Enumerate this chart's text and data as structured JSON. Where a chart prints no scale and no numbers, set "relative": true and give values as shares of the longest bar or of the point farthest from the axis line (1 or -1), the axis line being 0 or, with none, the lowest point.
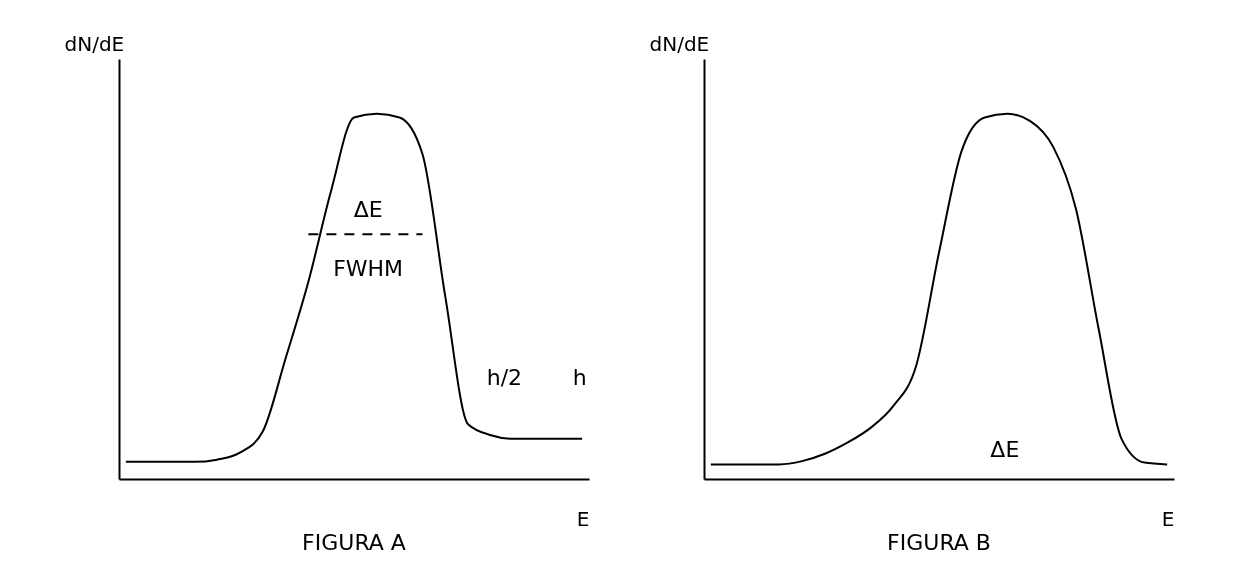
{
  "chart_data": [
    {
      "type": "line",
      "title": "FIGURA A",
      "xlabel": "E",
      "ylabel": "dN/dE",
      "relative": true,
      "grid": false,
      "categories": [
        null,
        null,
        null,
        null,
        null,
        null,
        null,
        null,
        null,
        null,
        null,
        null,
        null,
        null,
        null,
        null,
        null,
        null,
        null,
        null,
        null
      ],
      "series": [
        {
          "color": "#000000",
          "values": [
            0.047,
            0.047,
            0.047,
            0.047,
            0.053,
            0.072,
            0.13,
            0.33,
            0.54,
            0.79,
            0.99,
            1,
            0.99,
            0.89,
            0.5,
            0.15,
            0.12,
            0.11,
            0.11,
            0.11,
            0.11
          ]
        },
        {
          "color": "#000000",
          "line_style": "dashed",
          "values": [
            null,
            null,
            null,
            null,
            null,
            null,
            null,
            null,
            0.67,
            0.67,
            0.67,
            0.67,
            0.67,
            0.67,
            null,
            null,
            null,
            null,
            null,
            null,
            null
          ]
        }
      ],
      "annotations": [
        "ΔE",
        "FWHM",
        "h/2",
        "h"
      ]
    },
    {
      "type": "line",
      "title": "FIGURA B",
      "xlabel": "E",
      "ylabel": "dN/dE",
      "relative": true,
      "grid": false,
      "categories": [
        null,
        null,
        null,
        null,
        null,
        null,
        null,
        null,
        null,
        null,
        null,
        null,
        null,
        null,
        null,
        null,
        null,
        null,
        null,
        null,
        null
      ],
      "series": [
        {
          "color": "#000000",
          "values": [
            0.04,
            0.04,
            0.04,
            0.04,
            0.049,
            0.069,
            0.1,
            0.14,
            0.2,
            0.31,
            0.62,
            0.9,
            0.99,
            1,
            0.98,
            0.91,
            0.74,
            0.41,
            0.11,
            0.045,
            0.04
          ]
        }
      ],
      "annotations": [
        "ΔE"
      ]
    }
  ]
}
